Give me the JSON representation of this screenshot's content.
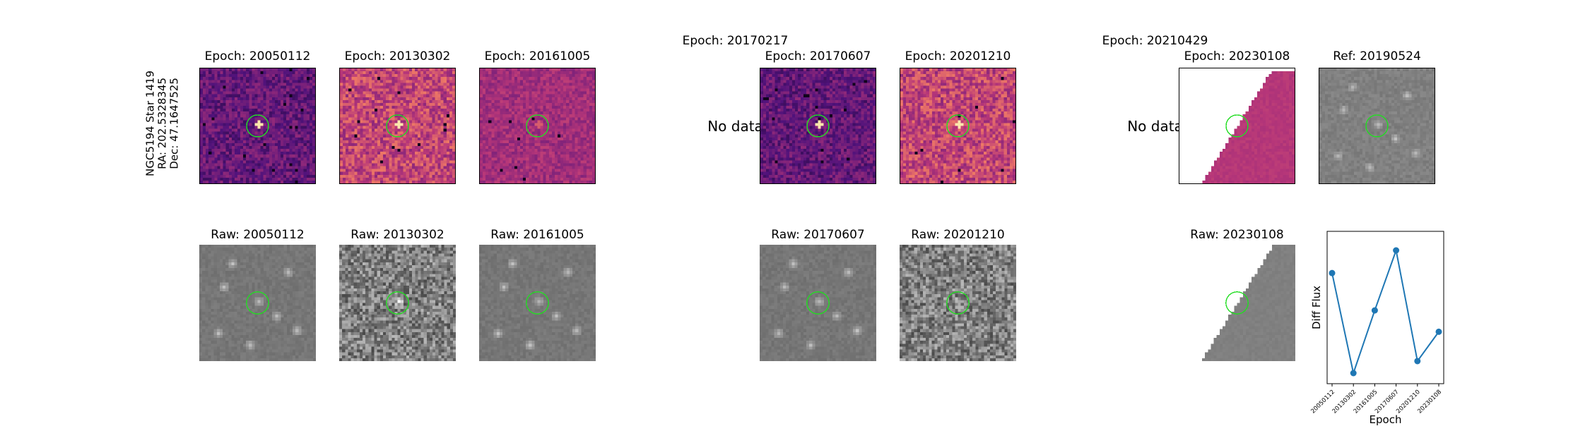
{
  "star_label": {
    "line1": "NGC5194 Star 1419",
    "line2": "RA: 202.5328345",
    "line3": "Dec: 47.1647525"
  },
  "diff_panels": [
    {
      "title": "Epoch: 20050112",
      "has_data": true,
      "style": "magma-dark"
    },
    {
      "title": "Epoch: 20130302",
      "has_data": true,
      "style": "magma-bright"
    },
    {
      "title": "Epoch: 20161005",
      "has_data": true,
      "style": "magma-mid"
    },
    {
      "title": "Epoch: 20170217",
      "has_data": false,
      "nodata_text": "No data"
    },
    {
      "title": "Epoch: 20170607",
      "has_data": true,
      "style": "magma-dark"
    },
    {
      "title": "Epoch: 20201210",
      "has_data": true,
      "style": "magma-bright"
    },
    {
      "title": "Epoch: 20210429",
      "has_data": false,
      "nodata_text": "No data"
    },
    {
      "title": "Epoch: 20230108",
      "has_data": true,
      "style": "magma-partial"
    },
    {
      "title": "Ref: 20190524",
      "has_data": true,
      "style": "gray"
    }
  ],
  "raw_panels": [
    {
      "title": "Raw: 20050112",
      "style": "gray-smooth"
    },
    {
      "title": "Raw: 20130302",
      "style": "gray-noisy"
    },
    {
      "title": "Raw: 20161005",
      "style": "gray-smooth"
    },
    {
      "title": "Raw: 20170607",
      "style": "gray-smooth"
    },
    {
      "title": "Raw: 20201210",
      "style": "gray-noisy"
    },
    {
      "title": "Raw: 20230108",
      "style": "gray-partial"
    }
  ],
  "colors": {
    "circle": "#22dd22",
    "line": "#1f77b4"
  },
  "chart_data": {
    "type": "line",
    "title": "",
    "xlabel": "Epoch",
    "ylabel": "Diff Flux",
    "x": [
      "20050112",
      "20130302",
      "20161005",
      "20170607",
      "20201210",
      "20230108"
    ],
    "series": [
      {
        "values": [
          0.75,
          0.0,
          0.47,
          0.92,
          0.09,
          0.31
        ]
      }
    ],
    "y_ticks_shown": false,
    "grid": false
  }
}
